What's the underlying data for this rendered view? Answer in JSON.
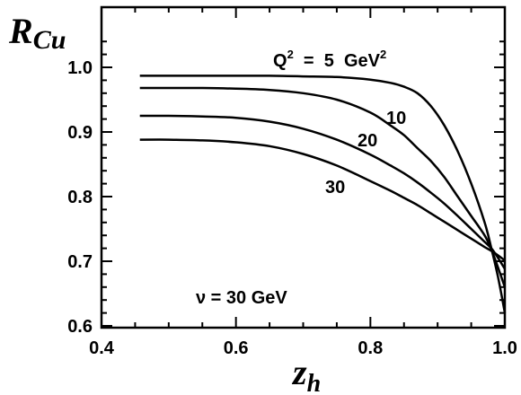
{
  "chart_data": {
    "type": "line",
    "title": "",
    "xlabel": "z",
    "xlabel_sub": "h",
    "ylabel": "R",
    "ylabel_sub": "Cu",
    "xlim": [
      0.4,
      1.0
    ],
    "ylim": [
      0.6,
      1.05
    ],
    "x_ticks": [
      0.4,
      0.6,
      0.8,
      1.0
    ],
    "x_tick_labels": [
      "0.4",
      "0.6",
      "0.8",
      "1.0"
    ],
    "y_ticks": [
      0.6,
      0.7,
      0.8,
      0.9,
      1.0
    ],
    "y_tick_labels": [
      "0.6",
      "0.7",
      "0.8",
      "0.9",
      "1.0"
    ],
    "grid": false,
    "annotation": "ν = 30 GeV",
    "series": [
      {
        "name": "Q² = 5 GeV²",
        "label_prefix": "Q",
        "label_sup": "2",
        "label_mid": " = 5 GeV",
        "label_sup2": "2",
        "x": [
          0.457,
          0.5,
          0.55,
          0.6,
          0.65,
          0.7,
          0.75,
          0.8,
          0.83,
          0.85,
          0.87,
          0.89,
          0.91,
          0.93,
          0.95,
          0.97,
          0.98,
          0.99,
          1.0
        ],
        "y": [
          0.987,
          0.987,
          0.987,
          0.987,
          0.987,
          0.986,
          0.985,
          0.981,
          0.976,
          0.97,
          0.96,
          0.94,
          0.91,
          0.87,
          0.82,
          0.76,
          0.72,
          0.675,
          0.62
        ]
      },
      {
        "name": "10",
        "label": "10",
        "x": [
          0.457,
          0.5,
          0.55,
          0.6,
          0.65,
          0.7,
          0.75,
          0.8,
          0.83,
          0.85,
          0.87,
          0.89,
          0.91,
          0.93,
          0.95,
          0.97,
          0.98,
          0.99,
          1.0
        ],
        "y": [
          0.968,
          0.968,
          0.968,
          0.967,
          0.965,
          0.96,
          0.95,
          0.93,
          0.91,
          0.895,
          0.875,
          0.855,
          0.83,
          0.8,
          0.77,
          0.74,
          0.718,
          0.69,
          0.66
        ]
      },
      {
        "name": "20",
        "label": "20",
        "x": [
          0.457,
          0.5,
          0.55,
          0.6,
          0.65,
          0.7,
          0.75,
          0.8,
          0.83,
          0.85,
          0.87,
          0.89,
          0.91,
          0.93,
          0.95,
          0.97,
          0.98,
          0.99,
          1.0
        ],
        "y": [
          0.925,
          0.925,
          0.924,
          0.922,
          0.916,
          0.905,
          0.888,
          0.865,
          0.848,
          0.836,
          0.822,
          0.806,
          0.789,
          0.77,
          0.75,
          0.73,
          0.72,
          0.705,
          0.688
        ]
      },
      {
        "name": "30",
        "label": "30",
        "x": [
          0.457,
          0.5,
          0.55,
          0.6,
          0.65,
          0.7,
          0.75,
          0.8,
          0.83,
          0.85,
          0.87,
          0.89,
          0.91,
          0.93,
          0.95,
          0.97,
          0.98,
          0.99,
          1.0
        ],
        "y": [
          0.888,
          0.888,
          0.887,
          0.884,
          0.878,
          0.866,
          0.848,
          0.824,
          0.809,
          0.798,
          0.787,
          0.774,
          0.761,
          0.748,
          0.735,
          0.722,
          0.716,
          0.709,
          0.701
        ]
      }
    ]
  }
}
